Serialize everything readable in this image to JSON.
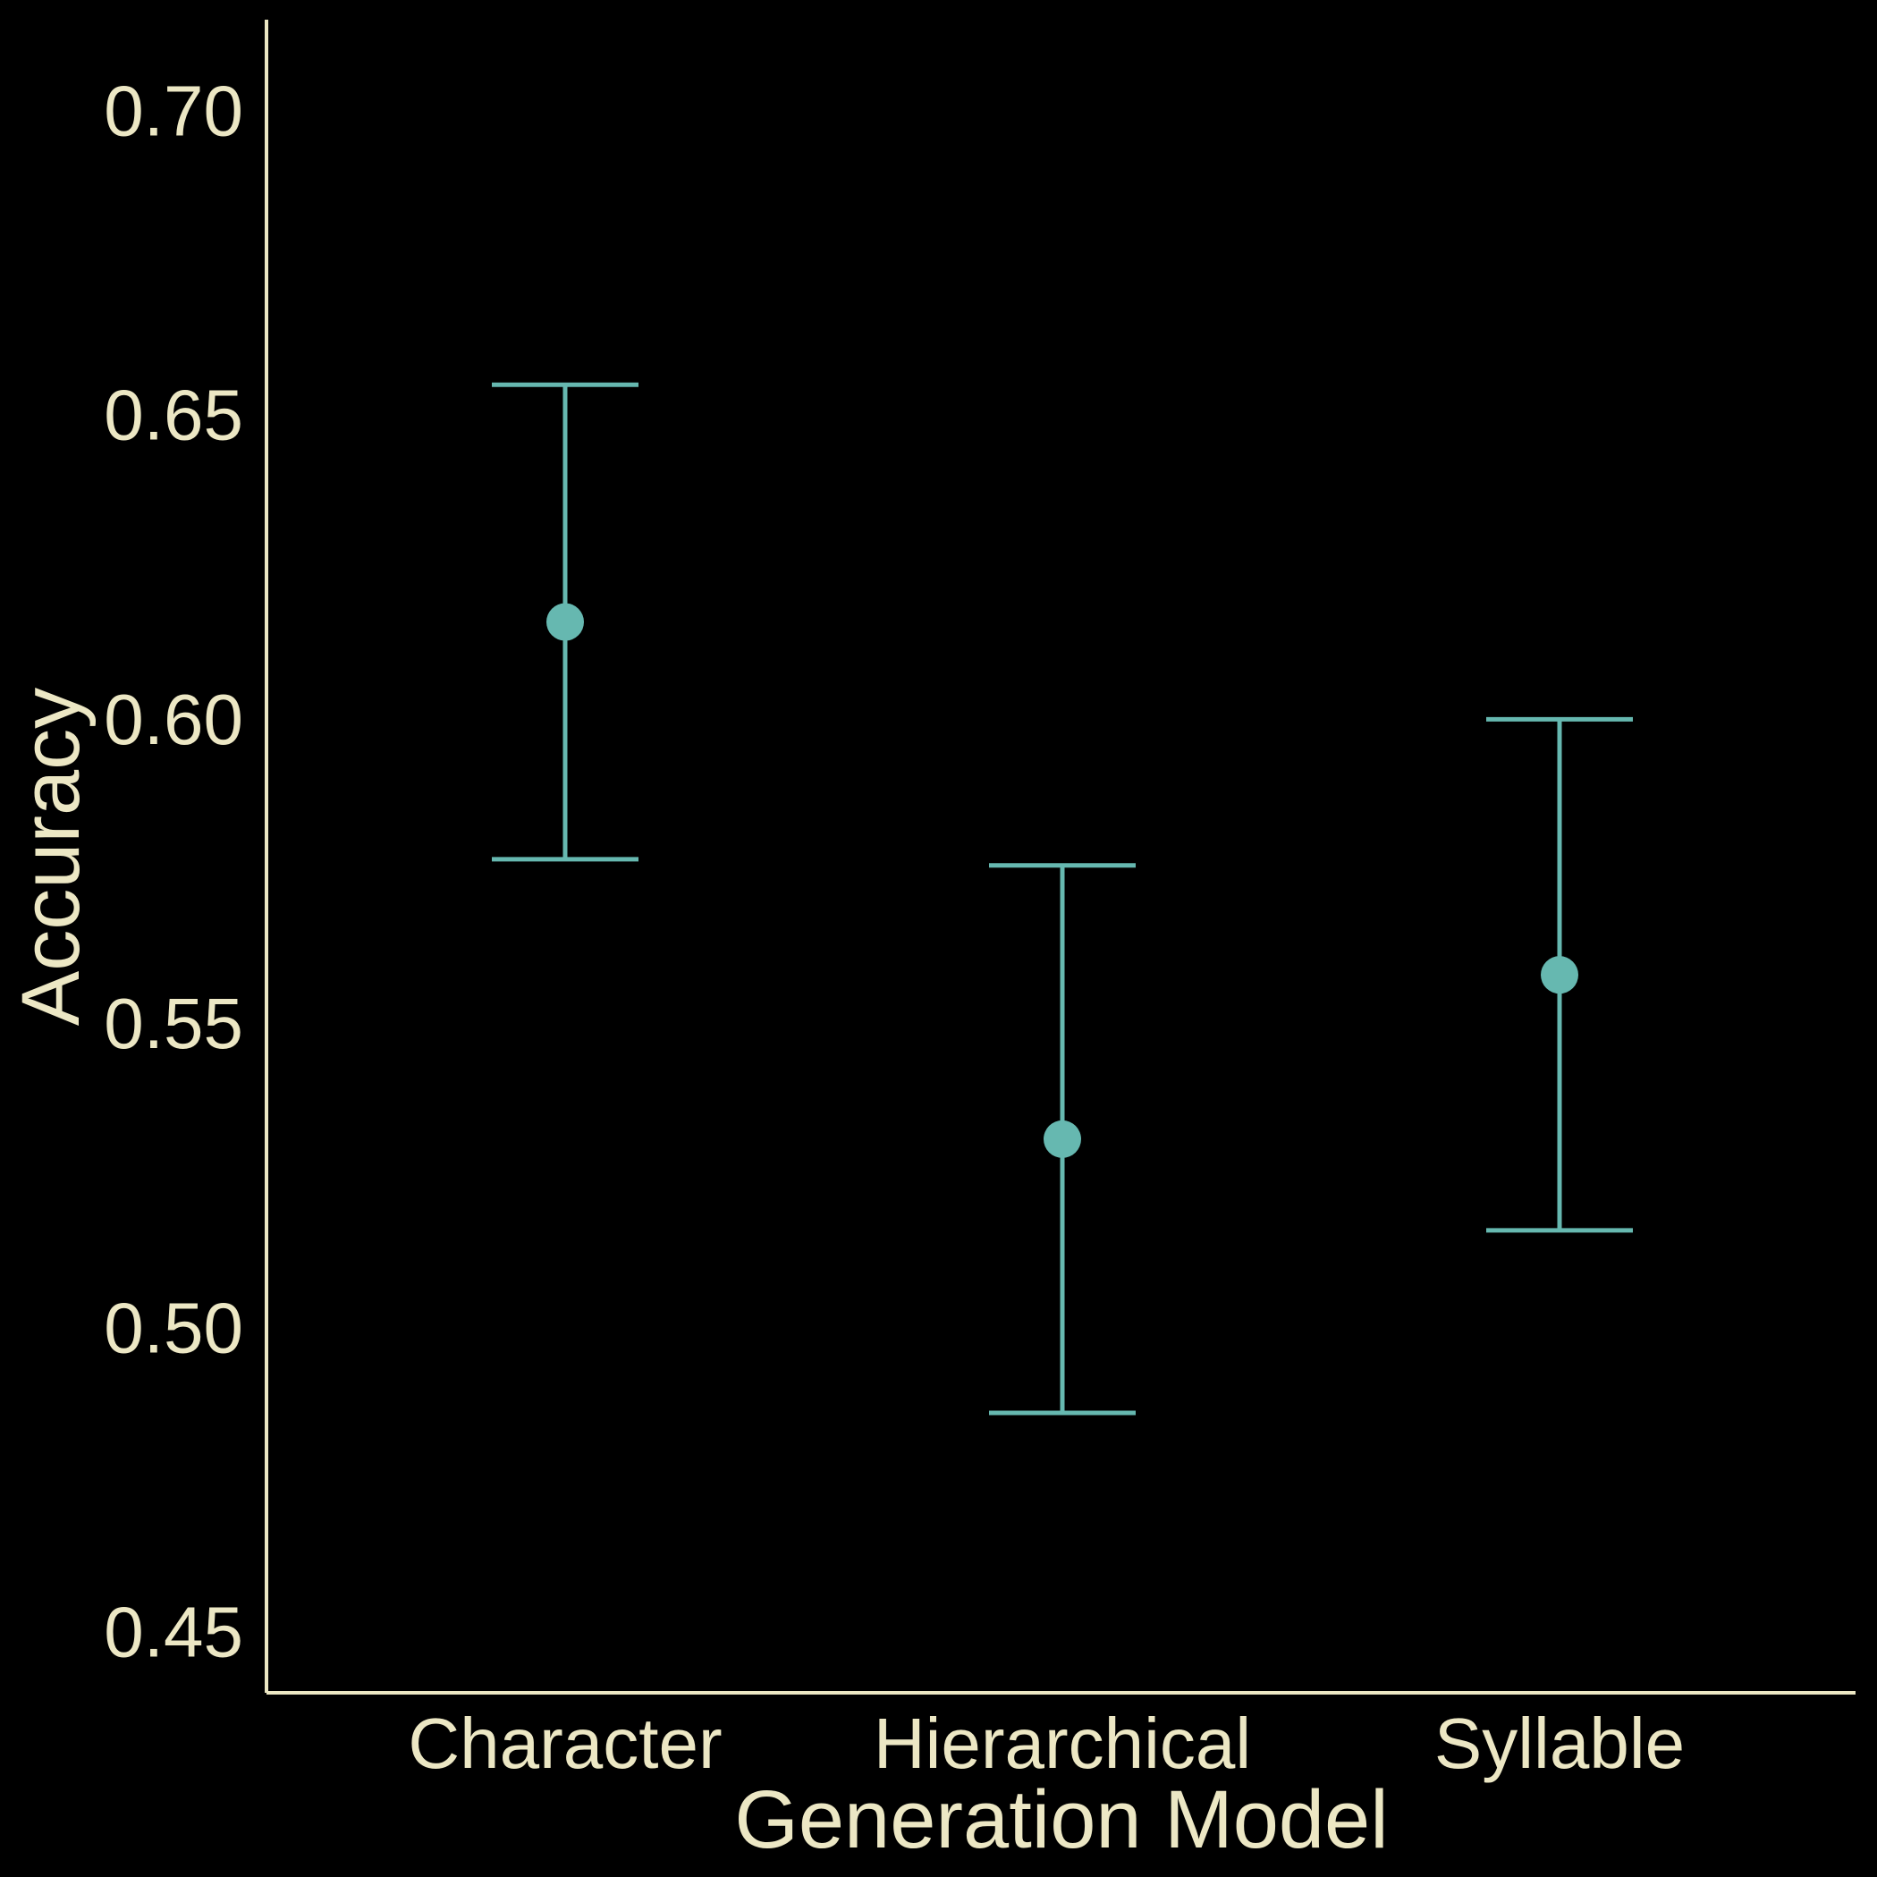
{
  "chart_data": {
    "type": "scatter",
    "subtype": "point-with-error-bars",
    "categories": [
      "Character",
      "Hierarchical",
      "Syllable"
    ],
    "series": [
      {
        "values": [
          0.616,
          0.531,
          0.558
        ],
        "lower": [
          0.577,
          0.486,
          0.516
        ],
        "upper": [
          0.655,
          0.576,
          0.6
        ]
      }
    ],
    "xlabel": "Generation Model",
    "ylabel": "Accuracy",
    "ylim": [
      0.44,
      0.715
    ],
    "yticks": [
      0.45,
      0.5,
      0.55,
      0.6,
      0.65,
      0.7
    ],
    "ytick_labels": [
      "0.45",
      "0.50",
      "0.55",
      "0.60",
      "0.65",
      "0.70"
    ],
    "grid": false,
    "legend": "none",
    "colors": {
      "background": "#000000",
      "axis": "#ECE7C4",
      "text": "#ECE7C4",
      "marker": "#66B8B0"
    }
  }
}
